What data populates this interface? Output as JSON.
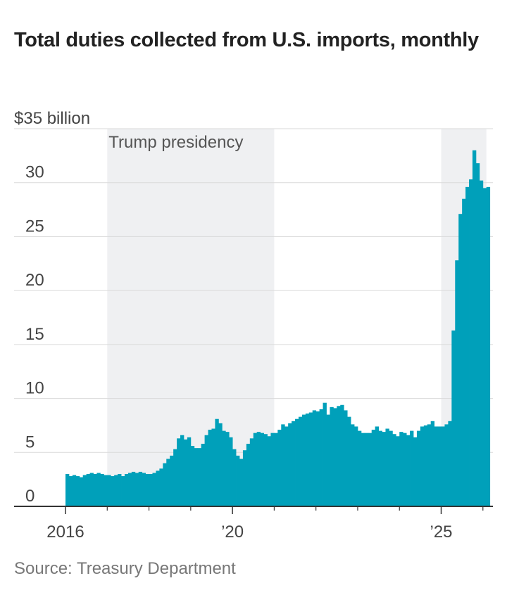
{
  "title": "Total duties collected from U.S. imports, monthly",
  "source": "Source: Treasury Department",
  "colors": {
    "bars": "#00A0BA",
    "shade": "#EFF0F2",
    "grid": "#DADADA",
    "axis": "#333333"
  },
  "chart_data": {
    "type": "bar",
    "title": "Total duties collected from U.S. imports, monthly",
    "xlabel": "",
    "ylabel": "",
    "ylim": [
      0,
      35
    ],
    "y_ticks": [
      {
        "value": 0,
        "label": "0"
      },
      {
        "value": 5,
        "label": "5"
      },
      {
        "value": 10,
        "label": "10"
      },
      {
        "value": 15,
        "label": "15"
      },
      {
        "value": 20,
        "label": "20"
      },
      {
        "value": 25,
        "label": "25"
      },
      {
        "value": 30,
        "label": "30"
      },
      {
        "value": 35,
        "label": "$35 billion"
      }
    ],
    "x_start": "2016-01",
    "x_end": "2026-02",
    "x_labels": [
      {
        "date": "2016-01",
        "label": "2016"
      },
      {
        "date": "2020-01",
        "label": "’20"
      },
      {
        "date": "2025-01",
        "label": "’25"
      }
    ],
    "x_minor_ticks": [
      "2017-01",
      "2018-01",
      "2019-01",
      "2021-01",
      "2022-01",
      "2023-01",
      "2024-01",
      "2026-01"
    ],
    "shaded_periods": [
      {
        "label": "Trump presidency",
        "start": "2017-01",
        "end": "2021-01"
      },
      {
        "label": "",
        "start": "2025-01",
        "end": "2026-02"
      }
    ],
    "series": [
      {
        "start": "2016-01",
        "values": [
          3.0,
          2.8,
          2.9,
          2.8,
          2.7,
          2.9,
          3.0,
          3.1,
          3.0,
          3.1,
          3.0,
          2.9,
          2.9,
          2.8,
          2.9,
          3.0,
          2.8,
          3.0,
          3.1,
          3.2,
          3.1,
          3.2,
          3.1,
          3.0,
          3.0,
          3.1,
          3.3,
          3.5,
          4.0,
          4.4,
          4.7,
          5.3,
          6.3,
          6.6,
          6.2,
          6.4,
          5.6,
          5.4,
          5.4,
          5.8,
          6.6,
          7.1,
          7.2,
          8.1,
          7.7,
          7.0,
          6.9,
          6.4,
          5.3,
          4.7,
          4.4,
          5.2,
          5.8,
          6.3,
          6.8,
          6.9,
          6.8,
          6.7,
          6.5,
          6.8,
          6.8,
          7.1,
          7.6,
          7.4,
          7.7,
          7.9,
          8.1,
          8.3,
          8.5,
          8.6,
          8.7,
          8.9,
          8.8,
          9.0,
          9.6,
          8.5,
          9.2,
          9.1,
          9.3,
          9.4,
          8.9,
          8.3,
          7.6,
          7.4,
          7.0,
          6.8,
          6.8,
          6.8,
          7.1,
          7.4,
          7.0,
          6.9,
          7.2,
          7.0,
          6.7,
          6.5,
          6.9,
          6.8,
          6.6,
          7.0,
          6.4,
          7.0,
          7.4,
          7.5,
          7.6,
          7.9,
          7.4,
          7.4,
          7.4,
          7.6,
          7.9,
          16.3,
          22.8,
          27.1,
          28.5,
          29.6,
          30.3,
          33.0,
          31.8,
          30.2,
          29.5,
          29.6
        ]
      }
    ]
  }
}
